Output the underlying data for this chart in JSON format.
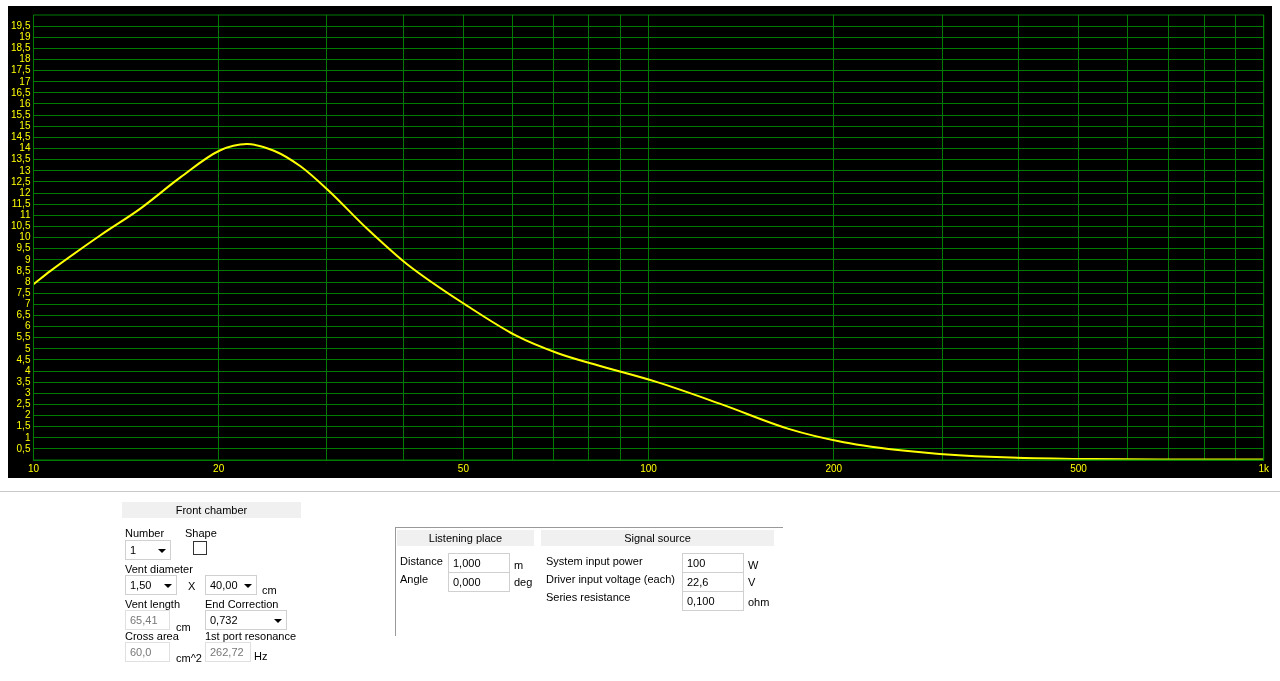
{
  "chart_data": [
    {
      "type": "line",
      "x": [
        10,
        10.66,
        12.85,
        14.92,
        17.33,
        20.05,
        22.23,
        24.6,
        27.17,
        30.2,
        34.84,
        40.5,
        50.9,
        60.8,
        71.2,
        81.6,
        103.3,
        131.5,
        168.9,
        207.6,
        264,
        324,
        528,
        1000
      ],
      "series": [
        {
          "color": "#ffff00",
          "values": [
            7.9,
            8.5,
            10.1,
            11.3,
            12.7,
            13.9,
            14.2,
            13.9,
            13.2,
            12.1,
            10.4,
            8.8,
            6.9,
            5.6,
            4.8,
            4.3,
            3.5,
            2.5,
            1.4,
            0.8,
            0.4,
            0.2,
            0.04,
            0.02
          ]
        }
      ],
      "xlim": [
        10,
        1000
      ],
      "ylim": [
        0,
        20
      ],
      "xticks": [
        10,
        20,
        {
          "value": 30,
          "label": null
        },
        {
          "value": 40,
          "label": null
        },
        50,
        {
          "value": 60,
          "label": null
        },
        {
          "value": 70,
          "label": null
        },
        {
          "value": 80,
          "label": null
        },
        {
          "value": 90,
          "label": null
        },
        100,
        200,
        {
          "value": 300,
          "label": null
        },
        {
          "value": 400,
          "label": null
        },
        500,
        {
          "value": 600,
          "label": null
        },
        {
          "value": 700,
          "label": null
        },
        {
          "value": 800,
          "label": null
        },
        {
          "value": 900,
          "label": null
        },
        {
          "value": 1000,
          "label": "1k"
        }
      ],
      "yticks": [
        {
          "value": 0.5,
          "label": "0,5"
        },
        1,
        {
          "value": 1.5,
          "label": "1,5"
        },
        2,
        {
          "value": 2.5,
          "label": "2,5"
        },
        3,
        {
          "value": 3.5,
          "label": "3,5"
        },
        4,
        {
          "value": 4.5,
          "label": "4,5"
        },
        5,
        {
          "value": 5.5,
          "label": "5,5"
        },
        6,
        {
          "value": 6.5,
          "label": "6,5"
        },
        7,
        {
          "value": 7.5,
          "label": "7,5"
        },
        8,
        {
          "value": 8.5,
          "label": "8,5"
        },
        9,
        {
          "value": 9.5,
          "label": "9,5"
        },
        10,
        {
          "value": 10.5,
          "label": "10,5"
        },
        11,
        {
          "value": 11.5,
          "label": "11,5"
        },
        12,
        {
          "value": 12.5,
          "label": "12,5"
        },
        13,
        {
          "value": 13.5,
          "label": "13,5"
        },
        14,
        {
          "value": 14.5,
          "label": "14,5"
        },
        15,
        {
          "value": 15.5,
          "label": "15,5"
        },
        16,
        {
          "value": 16.5,
          "label": "16,5"
        },
        17,
        {
          "value": 17.5,
          "label": "17,5"
        },
        18,
        {
          "value": 18.5,
          "label": "18,5"
        },
        19,
        {
          "value": 19.5,
          "label": "19,5"
        }
      ],
      "log": "x",
      "grid": true,
      "marker": "none",
      "line_style": "solid"
    },
    {
      "type": "other",
      "annotations": [
        "Front chamber",
        "Number",
        "1",
        "Shape",
        "Vent diameter",
        "1,50",
        "X",
        "40,00",
        "cm",
        "Vent length",
        "End Correction",
        "65,41",
        "cm",
        "0,732",
        "Cross area",
        "1st port resonance",
        "60,0",
        "cm^2",
        "262,72",
        "Hz",
        "Listening place",
        "Distance",
        "1,000",
        "m",
        "Angle",
        "0,000",
        "deg",
        "Signal source",
        "System input power",
        "100",
        "W",
        "Driver input voltage (each)",
        "22,6",
        "V",
        "Series resistance",
        "0,100",
        "ohm"
      ]
    }
  ]
}
